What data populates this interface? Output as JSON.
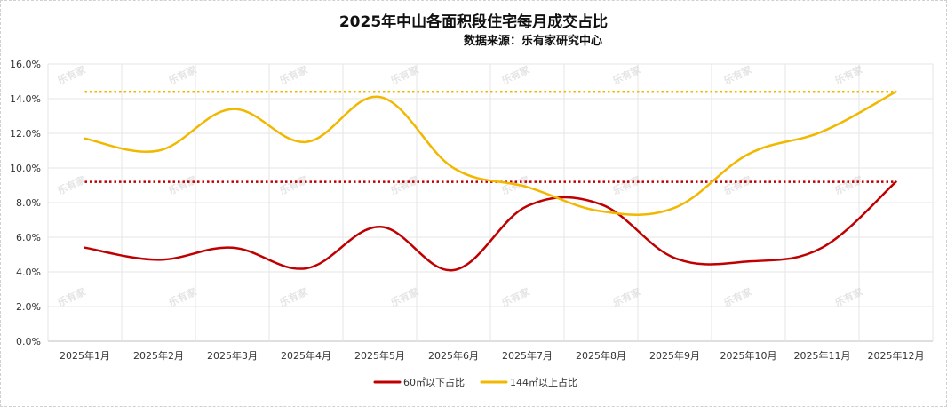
{
  "chart_data": {
    "type": "line",
    "title": "2025年中山各面积段住宅每月成交占比",
    "subtitle": "数据来源：乐有家研究中心",
    "categories": [
      "2025年1月",
      "2025年2月",
      "2025年3月",
      "2025年4月",
      "2025年5月",
      "2025年6月",
      "2025年7月",
      "2025年8月",
      "2025年9月",
      "2025年10月",
      "2025年11月",
      "2025年12月"
    ],
    "ylim": [
      0,
      16
    ],
    "yticks": [
      "0.0%",
      "2.0%",
      "4.0%",
      "6.0%",
      "8.0%",
      "10.0%",
      "12.0%",
      "14.0%",
      "16.0%"
    ],
    "grid": true,
    "legend_position": "bottom",
    "watermark": "乐有家",
    "series": [
      {
        "name": "60㎡以下占比",
        "color": "#c00000",
        "values": [
          5.4,
          4.7,
          5.4,
          4.2,
          6.6,
          4.1,
          7.8,
          7.9,
          4.8,
          4.6,
          5.4,
          9.2
        ],
        "reference_line": 9.2
      },
      {
        "name": "144㎡以上占比",
        "color": "#f2b800",
        "values": [
          11.7,
          11.0,
          13.4,
          11.5,
          14.1,
          10.0,
          8.9,
          7.5,
          7.7,
          10.8,
          12.1,
          14.4
        ],
        "reference_line": 14.4
      }
    ]
  }
}
